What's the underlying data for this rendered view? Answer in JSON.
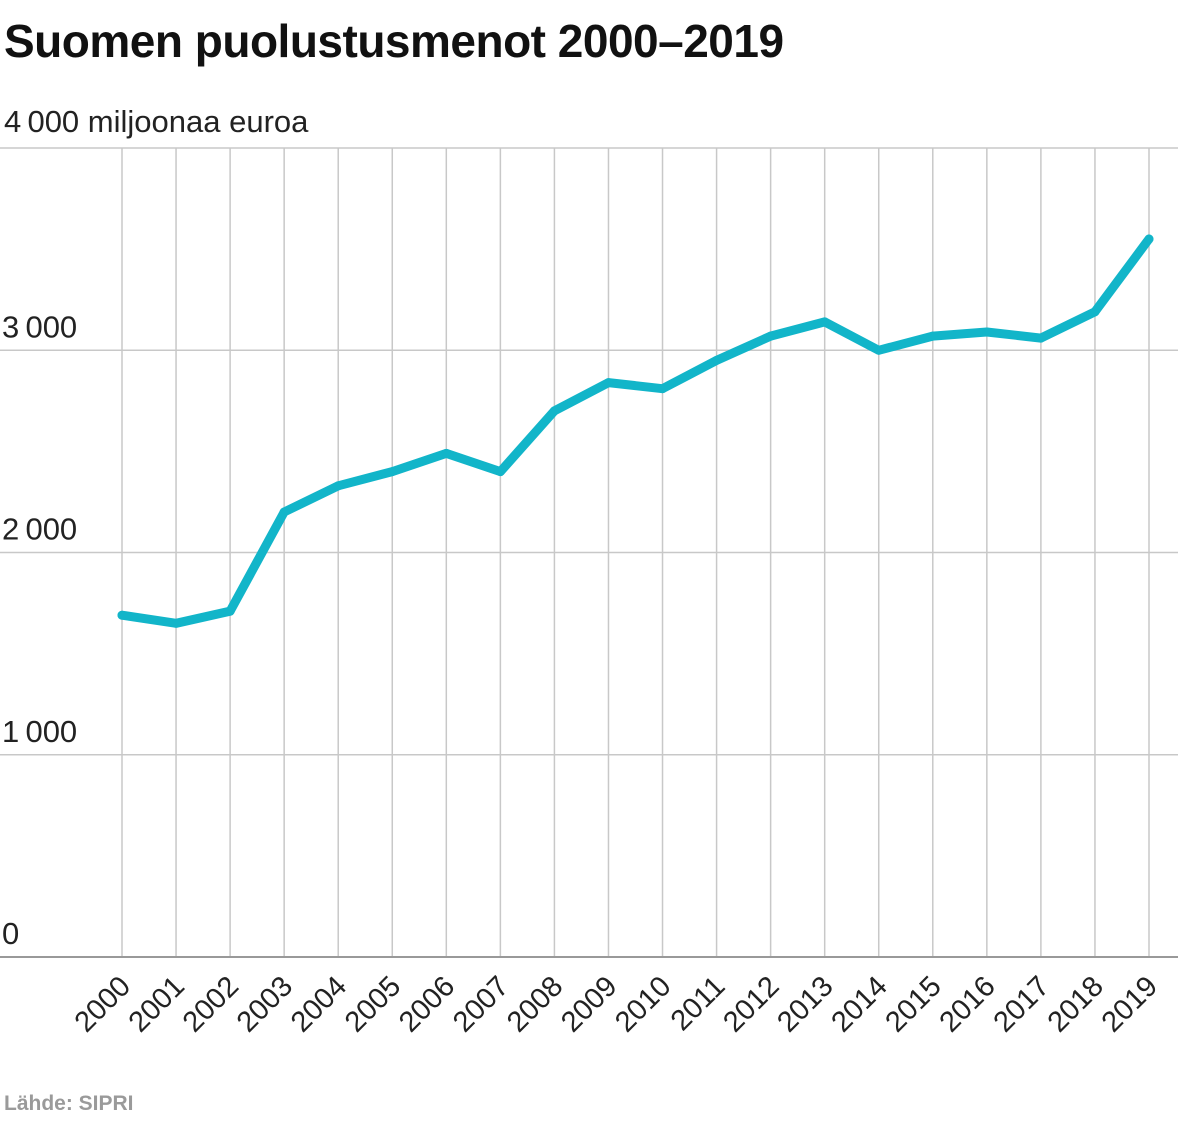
{
  "title": "Suomen puolustusmenot 2000–2019",
  "source": "Lähde: SIPRI",
  "colors": {
    "line": "#12b5c9",
    "grid": "#c8c8c8",
    "axis": "#999999",
    "text": "#222222"
  },
  "chart_data": {
    "type": "line",
    "title": "Suomen puolustusmenot 2000–2019",
    "ylabel": "miljoonaa euroa",
    "xlabel": "",
    "unit_label": "4 000 miljoonaa euroa",
    "ylim": [
      0,
      4000
    ],
    "yticks": [
      {
        "value": 0,
        "label": "0"
      },
      {
        "value": 1000,
        "label": "1 000"
      },
      {
        "value": 2000,
        "label": "2 000"
      },
      {
        "value": 3000,
        "label": "3 000"
      }
    ],
    "grid": true,
    "categories": [
      "2000",
      "2001",
      "2002",
      "2003",
      "2004",
      "2005",
      "2006",
      "2007",
      "2008",
      "2009",
      "2010",
      "2011",
      "2012",
      "2013",
      "2014",
      "2015",
      "2016",
      "2017",
      "2018",
      "2019"
    ],
    "series": [
      {
        "name": "Puolustusmenot",
        "values": [
          1690,
          1650,
          1710,
          2200,
          2330,
          2400,
          2490,
          2400,
          2700,
          2840,
          2810,
          2950,
          3070,
          3140,
          3000,
          3070,
          3090,
          3060,
          3190,
          3550
        ]
      }
    ]
  }
}
